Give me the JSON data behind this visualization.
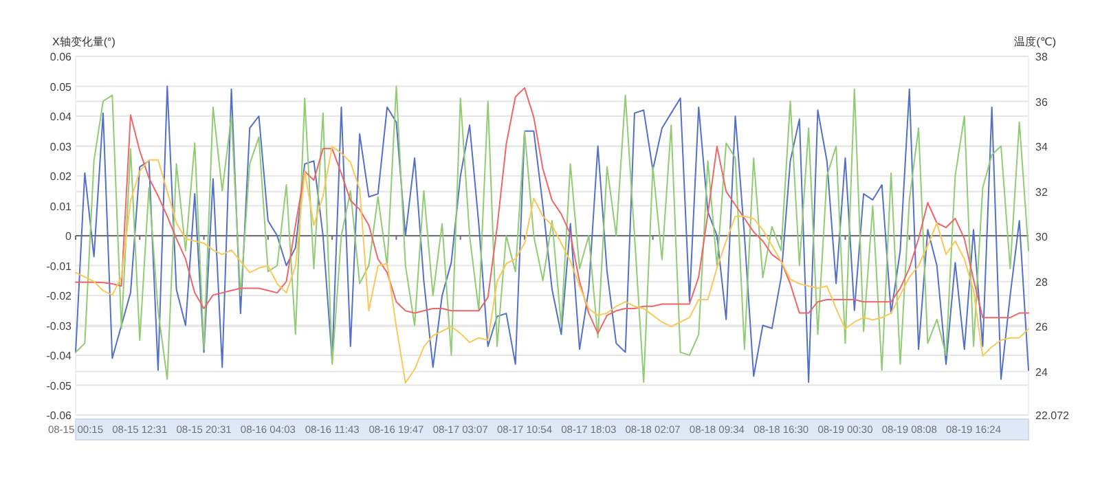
{
  "chart_data": {
    "type": "line",
    "ylabel": "X轴变化量(°)",
    "y2label": "温度(℃)",
    "categories": [
      "08-15 00:15",
      null,
      null,
      null,
      null,
      null,
      null,
      "08-15 12:31",
      null,
      null,
      null,
      null,
      null,
      null,
      "08-15 20:31",
      null,
      null,
      null,
      null,
      null,
      null,
      "08-16 04:03",
      null,
      null,
      null,
      null,
      null,
      null,
      "08-16 11:43",
      null,
      null,
      null,
      null,
      null,
      null,
      "08-16 19:47",
      null,
      null,
      null,
      null,
      null,
      null,
      "08-17 03:07",
      null,
      null,
      null,
      null,
      null,
      null,
      "08-17 10:54",
      null,
      null,
      null,
      null,
      null,
      null,
      "08-17 18:03",
      null,
      null,
      null,
      null,
      null,
      null,
      "08-18 02:07",
      null,
      null,
      null,
      null,
      null,
      null,
      "08-18 09:34",
      null,
      null,
      null,
      null,
      null,
      null,
      "08-18 16:30",
      null,
      null,
      null,
      null,
      null,
      null,
      "08-19 00:30",
      null,
      null,
      null,
      null,
      null,
      null,
      "08-19 08:08",
      null,
      null,
      null,
      null,
      null,
      null,
      "08-19 16:24",
      null,
      null,
      null,
      null,
      null,
      null
    ],
    "series": [
      {
        "color": "#5470c6",
        "values": [
          -0.039,
          0.021,
          -0.007,
          0.041,
          -0.041,
          -0.03,
          -0.019,
          0.023,
          0.025,
          -0.045,
          0.05,
          -0.018,
          -0.03,
          0.014,
          -0.039,
          0.019,
          -0.044,
          0.049,
          -0.026,
          0.036,
          0.04,
          0.005,
          0.0,
          -0.01,
          -0.004,
          0.024,
          0.025,
          0.0,
          -0.042,
          0.043,
          -0.037,
          0.034,
          0.013,
          0.014,
          0.043,
          0.038,
          0.0,
          0.026,
          -0.015,
          -0.044,
          -0.02,
          -0.009,
          0.02,
          0.037,
          0.004,
          -0.037,
          -0.027,
          -0.026,
          -0.043,
          0.035,
          0.035,
          0.01,
          -0.018,
          -0.033,
          0.004,
          -0.038,
          -0.018,
          0.03,
          -0.012,
          -0.036,
          -0.039,
          0.041,
          0.042,
          0.022,
          0.036,
          0.041,
          0.046,
          -0.022,
          0.043,
          0.008,
          0.0,
          -0.028,
          0.04,
          0.0,
          -0.047,
          -0.03,
          -0.031,
          -0.014,
          0.025,
          0.039,
          -0.049,
          0.042,
          0.025,
          -0.016,
          0.026,
          -0.025,
          0.014,
          0.012,
          0.017,
          -0.026,
          -0.005,
          0.049,
          -0.038,
          0.002,
          -0.01,
          -0.043,
          -0.009,
          -0.038,
          0.002,
          -0.037,
          0.043,
          -0.048,
          -0.02,
          0.005,
          -0.045
        ]
      },
      {
        "color": "#91cc75",
        "values": [
          -0.039,
          -0.036,
          0.025,
          0.045,
          0.047,
          -0.031,
          0.029,
          -0.035,
          0.016,
          -0.025,
          -0.048,
          0.024,
          -0.005,
          0.031,
          -0.038,
          0.043,
          0.015,
          0.04,
          -0.02,
          0.024,
          0.033,
          -0.012,
          -0.01,
          0.017,
          -0.033,
          0.046,
          -0.011,
          0.041,
          -0.043,
          0.0,
          0.015,
          -0.016,
          -0.01,
          0.013,
          -0.01,
          0.05,
          -0.01,
          -0.03,
          0.015,
          -0.02,
          0.004,
          -0.04,
          0.046,
          0.0,
          -0.025,
          0.045,
          -0.037,
          0.0,
          -0.012,
          0.035,
          0.0,
          -0.015,
          0.005,
          -0.03,
          0.024,
          -0.011,
          0.0,
          -0.034,
          0.023,
          0.0,
          0.047,
          0.0,
          -0.049,
          0.023,
          -0.008,
          0.037,
          -0.039,
          -0.04,
          -0.033,
          0.025,
          -0.01,
          0.031,
          0.026,
          -0.038,
          0.026,
          -0.014,
          0.003,
          -0.005,
          0.045,
          -0.01,
          0.036,
          -0.033,
          0.02,
          0.03,
          -0.036,
          0.049,
          -0.032,
          0.01,
          -0.045,
          0.021,
          -0.043,
          0.012,
          0.036,
          -0.036,
          -0.028,
          -0.04,
          0.02,
          0.04,
          -0.037,
          0.016,
          0.027,
          0.03,
          -0.011,
          0.038,
          -0.005
        ]
      },
      {
        "color": "#ee6666",
        "axis": "y2",
        "values": [
          27.97,
          27.97,
          27.97,
          27.95,
          27.9,
          27.8,
          35.4,
          33.8,
          32.6,
          31.8,
          30.9,
          29.9,
          29.0,
          27.5,
          26.8,
          27.4,
          27.5,
          27.6,
          27.7,
          27.7,
          27.7,
          27.6,
          27.5,
          28.0,
          30.5,
          32.9,
          32.5,
          33.9,
          33.9,
          32.8,
          31.6,
          31.2,
          30.5,
          29.0,
          28.4,
          27.1,
          26.7,
          26.6,
          26.7,
          26.8,
          26.8,
          26.7,
          26.7,
          26.7,
          26.7,
          27.3,
          30.4,
          34.1,
          36.2,
          36.6,
          35.3,
          33.0,
          31.6,
          31.0,
          30.1,
          28.0,
          26.6,
          25.7,
          26.5,
          26.7,
          26.8,
          26.8,
          26.9,
          26.9,
          27.0,
          27.0,
          27.0,
          27.0,
          28.2,
          31.0,
          34.0,
          32.0,
          31.4,
          30.8,
          30.2,
          29.8,
          29.2,
          28.9,
          27.9,
          26.6,
          26.6,
          27.1,
          27.2,
          27.2,
          27.2,
          27.2,
          27.1,
          27.1,
          27.1,
          27.1,
          27.7,
          28.6,
          29.9,
          31.5,
          30.6,
          30.4,
          30.8,
          29.9,
          28.1,
          26.4,
          26.4,
          26.4,
          26.4,
          26.6,
          26.6
        ]
      },
      {
        "color": "#fac858",
        "axis": "y2",
        "values": [
          28.4,
          28.2,
          28.0,
          27.6,
          27.4,
          28.2,
          31.6,
          32.9,
          33.4,
          33.4,
          32.0,
          30.6,
          29.9,
          29.8,
          29.7,
          29.4,
          29.2,
          29.4,
          28.9,
          28.4,
          28.6,
          28.7,
          27.9,
          27.5,
          28.7,
          32.9,
          30.5,
          31.8,
          34.0,
          33.7,
          33.3,
          32.1,
          26.7,
          28.7,
          28.8,
          26.0,
          23.5,
          24.1,
          25.1,
          25.6,
          25.8,
          26.0,
          25.7,
          25.3,
          25.5,
          25.4,
          28.0,
          28.8,
          29.0,
          29.7,
          31.7,
          30.9,
          30.5,
          29.7,
          28.9,
          27.8,
          26.8,
          26.5,
          26.6,
          26.9,
          27.1,
          26.9,
          26.8,
          26.5,
          26.2,
          26.0,
          26.2,
          26.4,
          27.2,
          27.2,
          28.6,
          29.8,
          30.9,
          30.9,
          30.8,
          30.3,
          29.6,
          28.9,
          28.1,
          27.9,
          27.8,
          27.7,
          27.8,
          26.8,
          25.9,
          26.2,
          26.4,
          26.3,
          26.4,
          26.6,
          27.4,
          28.2,
          28.7,
          29.6,
          30.6,
          29.2,
          29.8,
          29.0,
          27.6,
          24.7,
          25.1,
          25.4,
          25.5,
          25.5,
          25.9
        ]
      }
    ],
    "ylim": [
      -0.06,
      0.06
    ],
    "yticks": [
      -0.06,
      -0.05,
      -0.04,
      -0.03,
      -0.02,
      -0.01,
      0,
      0.01,
      0.02,
      0.03,
      0.04,
      0.05,
      0.06
    ],
    "y2lim": [
      22.072,
      38
    ],
    "y2ticks": [
      22.072,
      24,
      26,
      28,
      30,
      32,
      34,
      36,
      38
    ],
    "grid": "y"
  }
}
